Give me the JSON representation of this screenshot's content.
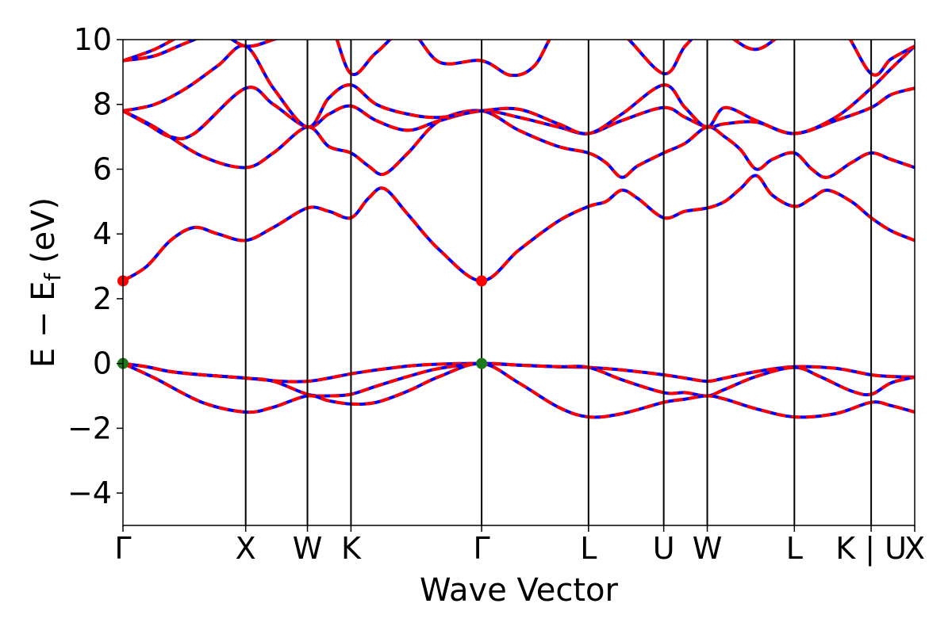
{
  "chart_data": {
    "type": "line",
    "title": "",
    "xlabel": "Wave Vector",
    "ylabel": {
      "prefix": "E − E",
      "subscript": "f",
      "suffix": " (eV)"
    },
    "ylim": [
      -5,
      10
    ],
    "yticks": [
      {
        "value": -4,
        "label": "−4"
      },
      {
        "value": -2,
        "label": "−2"
      },
      {
        "value": 0,
        "label": "0"
      },
      {
        "value": 2,
        "label": "2"
      },
      {
        "value": 4,
        "label": "4"
      },
      {
        "value": 6,
        "label": "6"
      },
      {
        "value": 8,
        "label": "8"
      },
      {
        "value": 10,
        "label": "10"
      }
    ],
    "kpath": {
      "range": [
        0,
        1
      ],
      "points": [
        {
          "label": "Γ",
          "pos": 0.0
        },
        {
          "label": "X",
          "pos": 0.155
        },
        {
          "label": "W",
          "pos": 0.233
        },
        {
          "label": "K",
          "pos": 0.288
        },
        {
          "label": "Γ",
          "pos": 0.453
        },
        {
          "label": "L",
          "pos": 0.588
        },
        {
          "label": "U",
          "pos": 0.683
        },
        {
          "label": "W",
          "pos": 0.738
        },
        {
          "label": "L",
          "pos": 0.848
        },
        {
          "label": "K | U",
          "pos": 0.945
        },
        {
          "label": "X",
          "pos": 1.0
        }
      ]
    },
    "series_style": [
      {
        "name": "",
        "color": "#0000ff",
        "dash": "solid"
      },
      {
        "name": "",
        "color": "#ff0000",
        "dash": "dashed"
      }
    ],
    "markers": [
      {
        "type": "cbm",
        "x": 0.0,
        "y": 2.55,
        "color": "#ff0000"
      },
      {
        "type": "cbm",
        "x": 0.453,
        "y": 2.55,
        "color": "#ff0000"
      },
      {
        "type": "vbm",
        "x": 0.0,
        "y": 0.0,
        "color": "#1a7a1a"
      },
      {
        "type": "vbm",
        "x": 0.453,
        "y": 0.0,
        "color": "#1a7a1a"
      }
    ],
    "bands": [
      {
        "x": [
          0,
          0.03,
          0.06,
          0.1,
          0.155,
          0.2,
          0.233,
          0.26,
          0.288,
          0.32,
          0.36,
          0.4,
          0.453,
          0.5,
          0.55,
          0.588,
          0.63,
          0.683,
          0.71,
          0.738,
          0.76,
          0.8,
          0.848,
          0.9,
          0.945,
          0.97,
          1.0
        ],
        "y": [
          0,
          -0.1,
          -0.25,
          -0.35,
          -0.45,
          -0.55,
          -0.55,
          -0.45,
          -0.32,
          -0.2,
          -0.08,
          -0.02,
          0,
          -0.05,
          -0.1,
          -0.12,
          -0.2,
          -0.35,
          -0.45,
          -0.55,
          -0.45,
          -0.25,
          -0.1,
          -0.15,
          -0.35,
          -0.4,
          -0.42
        ]
      },
      {
        "x": [
          0,
          0.03,
          0.06,
          0.1,
          0.155,
          0.19,
          0.233,
          0.26,
          0.288,
          0.32,
          0.36,
          0.4,
          0.453,
          0.5,
          0.55,
          0.588,
          0.63,
          0.683,
          0.71,
          0.738,
          0.76,
          0.8,
          0.848,
          0.88,
          0.92,
          0.945,
          0.97,
          1.0
        ],
        "y": [
          0,
          -0.1,
          -0.25,
          -0.35,
          -0.45,
          -0.55,
          -0.95,
          -1.0,
          -0.95,
          -0.7,
          -0.4,
          -0.15,
          0,
          -0.05,
          -0.1,
          -0.12,
          -0.5,
          -0.9,
          -0.9,
          -1.0,
          -0.8,
          -0.4,
          -0.12,
          -0.4,
          -0.85,
          -0.95,
          -0.6,
          -0.42
        ]
      },
      {
        "x": [
          0,
          0.04,
          0.1,
          0.155,
          0.19,
          0.233,
          0.26,
          0.288,
          0.32,
          0.36,
          0.4,
          0.453,
          0.5,
          0.55,
          0.588,
          0.63,
          0.683,
          0.71,
          0.738,
          0.76,
          0.8,
          0.848,
          0.9,
          0.945,
          0.97,
          1.0
        ],
        "y": [
          0,
          -0.45,
          -1.2,
          -1.5,
          -1.35,
          -1.0,
          -1.15,
          -1.25,
          -1.2,
          -0.85,
          -0.4,
          0,
          -0.6,
          -1.35,
          -1.65,
          -1.55,
          -1.2,
          -1.1,
          -1.0,
          -1.1,
          -1.4,
          -1.65,
          -1.55,
          -1.2,
          -1.3,
          -1.5
        ]
      },
      {
        "x": [
          0,
          0.03,
          0.06,
          0.09,
          0.12,
          0.155,
          0.19,
          0.233,
          0.26,
          0.288,
          0.31,
          0.33,
          0.36,
          0.4,
          0.453,
          0.5,
          0.55,
          0.588,
          0.61,
          0.63,
          0.65,
          0.683,
          0.71,
          0.738,
          0.76,
          0.78,
          0.8,
          0.82,
          0.848,
          0.87,
          0.89,
          0.92,
          0.945,
          0.97,
          1.0
        ],
        "y": [
          2.55,
          3.0,
          3.8,
          4.2,
          4.0,
          3.8,
          4.2,
          4.8,
          4.7,
          4.5,
          5.1,
          5.4,
          4.6,
          3.5,
          2.55,
          3.5,
          4.4,
          4.85,
          5.0,
          5.35,
          5.1,
          4.5,
          4.7,
          4.8,
          5.0,
          5.4,
          5.8,
          5.2,
          4.85,
          5.1,
          5.35,
          5.0,
          4.5,
          4.1,
          3.8
        ]
      },
      {
        "x": [
          0,
          0.04,
          0.1,
          0.155,
          0.19,
          0.233,
          0.26,
          0.288,
          0.31,
          0.33,
          0.36,
          0.4,
          0.453,
          0.5,
          0.55,
          0.588,
          0.61,
          0.63,
          0.65,
          0.683,
          0.71,
          0.738,
          0.76,
          0.78,
          0.8,
          0.82,
          0.848,
          0.87,
          0.89,
          0.92,
          0.945,
          0.97,
          1.0
        ],
        "y": [
          7.8,
          7.3,
          6.4,
          6.05,
          6.5,
          7.3,
          6.7,
          6.5,
          6.1,
          5.85,
          6.5,
          7.5,
          7.8,
          7.2,
          6.7,
          6.5,
          6.2,
          5.75,
          6.1,
          6.5,
          6.8,
          7.3,
          7.0,
          6.6,
          6.0,
          6.3,
          6.5,
          6.0,
          5.75,
          6.2,
          6.5,
          6.3,
          6.05
        ]
      },
      {
        "x": [
          0,
          0.03,
          0.06,
          0.09,
          0.155,
          0.19,
          0.233,
          0.26,
          0.288,
          0.32,
          0.36,
          0.4,
          0.453,
          0.5,
          0.55,
          0.588,
          0.63,
          0.683,
          0.71,
          0.738,
          0.76,
          0.8,
          0.848,
          0.9,
          0.945,
          0.97,
          1.0
        ],
        "y": [
          7.8,
          7.4,
          7.0,
          7.1,
          8.5,
          8.0,
          7.3,
          7.7,
          7.95,
          7.5,
          7.2,
          7.5,
          7.8,
          7.6,
          7.3,
          7.1,
          7.5,
          7.9,
          7.6,
          7.3,
          7.4,
          7.45,
          7.1,
          7.5,
          7.9,
          8.3,
          8.5
        ]
      },
      {
        "x": [
          0,
          0.04,
          0.08,
          0.12,
          0.155,
          0.19,
          0.233,
          0.26,
          0.288,
          0.32,
          0.36,
          0.4,
          0.453,
          0.5,
          0.55,
          0.588,
          0.63,
          0.683,
          0.71,
          0.738,
          0.76,
          0.8,
          0.848,
          0.9,
          0.945,
          0.97,
          1.0
        ],
        "y": [
          7.8,
          8.0,
          8.5,
          9.2,
          9.8,
          8.5,
          7.3,
          8.2,
          8.6,
          8.0,
          7.7,
          7.6,
          7.8,
          7.85,
          7.4,
          7.1,
          7.7,
          8.6,
          7.9,
          7.3,
          7.9,
          7.5,
          7.1,
          7.6,
          8.5,
          9.1,
          9.8
        ]
      },
      {
        "x": [
          0,
          0.04,
          0.08,
          0.12,
          0.155,
          0.19,
          0.233,
          0.26,
          0.288,
          0.32,
          0.36,
          0.4,
          0.453,
          0.49,
          0.52,
          0.55,
          0.588,
          0.63,
          0.683,
          0.71,
          0.738,
          0.76,
          0.8,
          0.848,
          0.9,
          0.945,
          0.97,
          1.0
        ],
        "y": [
          9.35,
          9.5,
          9.9,
          10.2,
          9.8,
          10.0,
          10.4,
          10.6,
          8.95,
          9.6,
          10.3,
          9.3,
          9.35,
          8.9,
          9.2,
          10.4,
          10.6,
          10.2,
          8.95,
          9.8,
          10.4,
          10.2,
          9.7,
          10.4,
          10.6,
          8.95,
          9.4,
          9.8
        ]
      },
      {
        "x": [
          0,
          0.04,
          0.08,
          0.12,
          0.155,
          0.2,
          0.233,
          0.26,
          0.288,
          0.32,
          0.36,
          0.4,
          0.453
        ],
        "y": [
          9.35,
          9.7,
          10.2,
          10.5,
          10.5,
          10.5,
          10.5,
          10.3,
          10.1,
          10.4,
          10.5,
          10.5,
          10.5
        ]
      }
    ]
  }
}
